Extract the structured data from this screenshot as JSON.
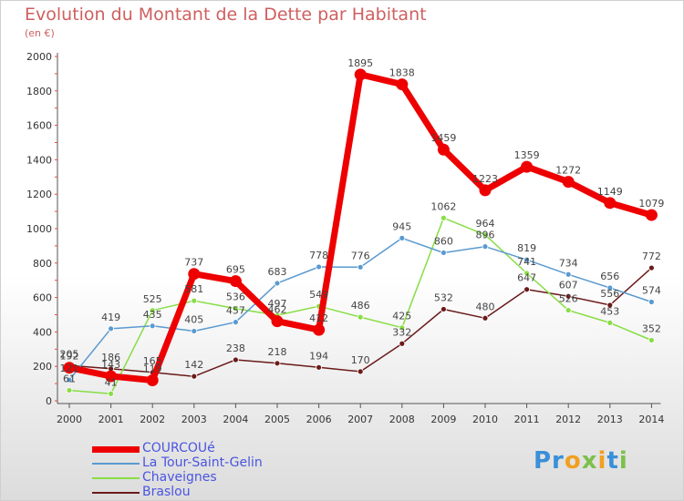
{
  "title": "Evolution du Montant de la Dette par Habitant",
  "subtitle": "(en €)",
  "logo": "Proxiti",
  "chart_data": {
    "type": "line",
    "x": [
      "2000",
      "2001",
      "2002",
      "2003",
      "2004",
      "2005",
      "2006",
      "2007",
      "2008",
      "2009",
      "2010",
      "2011",
      "2012",
      "2013",
      "2014"
    ],
    "ylim": [
      0,
      2000
    ],
    "yticks": [
      "0",
      "200",
      "400",
      "600",
      "800",
      "1000",
      "1200",
      "1400",
      "1600",
      "1800",
      "2000"
    ],
    "grid": false,
    "legend_position": "bottom-left",
    "series": [
      {
        "name": "COURCOUé",
        "color": "#ee0000",
        "values": [
          192,
          143,
          119,
          737,
          695,
          462,
          412,
          1895,
          1838,
          1459,
          1223,
          1359,
          1272,
          1149,
          1079
        ],
        "labels": [
          "192",
          "143",
          "119",
          "737",
          "695",
          "462",
          "412",
          "1895",
          "1838",
          "1459",
          "1223",
          "1359",
          "1272",
          "1149",
          "1079"
        ]
      },
      {
        "name": "La Tour-Saint-Gelin",
        "color": "#5a9ad0",
        "values": [
          121,
          419,
          435,
          405,
          457,
          683,
          778,
          776,
          945,
          860,
          896,
          819,
          734,
          656,
          574
        ],
        "labels": [
          "121",
          "419",
          "435",
          "405",
          "457",
          "683",
          "778",
          "776",
          "945",
          "860",
          "896",
          "819",
          "734",
          "656",
          "574"
        ]
      },
      {
        "name": "Chaveignes",
        "color": "#88dd44",
        "values": [
          61,
          41,
          525,
          581,
          536,
          497,
          549,
          486,
          425,
          1062,
          964,
          741,
          526,
          453,
          352
        ],
        "labels": [
          "61",
          "41",
          "525",
          "581",
          "536",
          "497",
          "549",
          "486",
          "425",
          "1062",
          "964",
          "741",
          "526",
          "453",
          "352"
        ]
      },
      {
        "name": "Braslou",
        "color": "#6b1a1a",
        "values": [
          205,
          186,
          165,
          142,
          238,
          218,
          194,
          170,
          332,
          532,
          480,
          647,
          607,
          556,
          772
        ],
        "labels": [
          "205",
          "186",
          "165",
          "142",
          "238",
          "218",
          "194",
          "170",
          "332",
          "532",
          "480",
          "647",
          "607",
          "556",
          "772"
        ]
      }
    ]
  }
}
